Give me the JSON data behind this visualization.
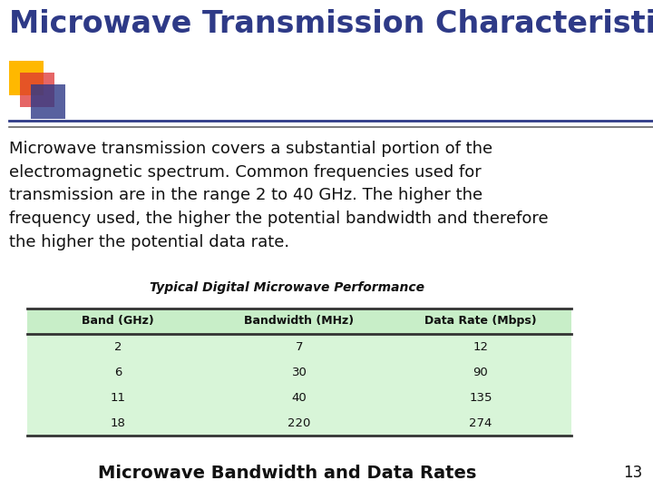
{
  "title": "Microwave Transmission Characteristics",
  "title_color": "#2E3A87",
  "title_fontsize": 24,
  "body_text": "Microwave transmission covers a substantial portion of the\nelectromagnetic spectrum. Common frequencies used for\ntransmission are in the range 2 to 40 GHz. The higher the\nfrequency used, the higher the potential bandwidth and therefore\nthe higher the potential data rate.",
  "body_fontsize": 13,
  "table_title": "Typical Digital Microwave Performance",
  "table_title_fontsize": 10,
  "table_headers": [
    "Band (GHz)",
    "Bandwidth (MHz)",
    "Data Rate (Mbps)"
  ],
  "table_data": [
    [
      "2",
      "7",
      "12"
    ],
    [
      "6",
      "30",
      "90"
    ],
    [
      "11",
      "40",
      "135"
    ],
    [
      "18",
      "220",
      "274"
    ]
  ],
  "table_header_bg": "#c8eec8",
  "table_row_bg": "#d8f5d8",
  "table_border_color": "#333333",
  "caption": "Microwave Bandwidth and Data Rates",
  "caption_fontsize": 14,
  "page_number": "13",
  "page_number_fontsize": 12,
  "bg_color": "#ffffff",
  "decoration_square1_color": "#FFB800",
  "decoration_square2_color": "#DD3333",
  "decoration_square3_color": "#2E3A87",
  "decoration_line1_color": "#2E3A87",
  "decoration_line2_color": "#666666"
}
